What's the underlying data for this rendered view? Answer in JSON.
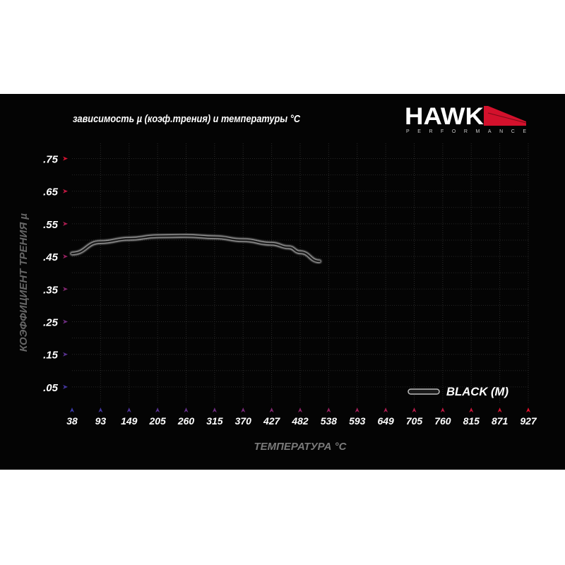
{
  "chart_data": {
    "type": "line",
    "title": "зависимость µ (коэф.трения) и температуры °C",
    "xlabel": "ТЕМПЕРАТУРА °C",
    "ylabel": "КОЭФФИЦИЕНТ ТРЕНИЯ µ",
    "x_ticks": [
      "38",
      "93",
      "149",
      "205",
      "260",
      "315",
      "370",
      "427",
      "482",
      "538",
      "593",
      "649",
      "705",
      "760",
      "815",
      "871",
      "927"
    ],
    "y_ticks": [
      ".05",
      ".15",
      ".25",
      ".35",
      ".45",
      ".55",
      ".65",
      ".75"
    ],
    "xlim": [
      38,
      927
    ],
    "ylim": [
      0,
      0.8
    ],
    "grid": true,
    "legend_position": "bottom-right",
    "series": [
      {
        "name": "BLACK (M)",
        "x": [
          38,
          93,
          149,
          205,
          260,
          315,
          370,
          427,
          460,
          482,
          520
        ],
        "y": [
          0.459,
          0.494,
          0.504,
          0.512,
          0.513,
          0.509,
          0.5,
          0.489,
          0.478,
          0.463,
          0.435
        ]
      }
    ]
  },
  "logo": {
    "brand": "HAWK",
    "sub": "PERFORMANCE"
  },
  "colors": {
    "background": "#040404",
    "axis_low": "#3a3aa8",
    "axis_high": "#d0103a",
    "line": "#2a2a2a",
    "glow": "#cfcfcf",
    "axis_title": "#7a7a7a"
  }
}
